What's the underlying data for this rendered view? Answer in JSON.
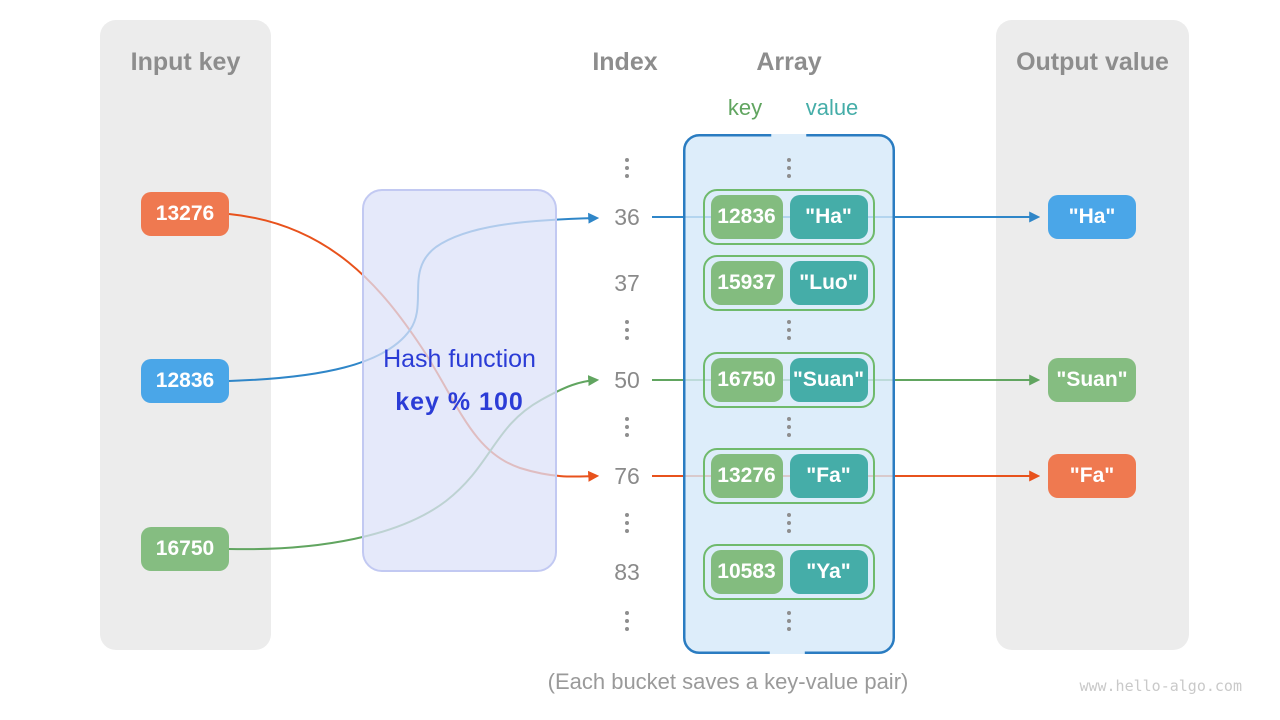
{
  "panels": {
    "input_key": {
      "title": "Input key"
    },
    "output_value": {
      "title": "Output value"
    }
  },
  "hash_function": {
    "label": "Hash function",
    "formula": "key % 100"
  },
  "columns": {
    "index_label": "Index",
    "array_label": "Array",
    "key_label": "key",
    "value_label": "value"
  },
  "input_keys": [
    {
      "value": "13276",
      "color": "#ef7950",
      "maps_to_index": "76"
    },
    {
      "value": "12836",
      "color": "#4aa6e8",
      "maps_to_index": "36"
    },
    {
      "value": "16750",
      "color": "#85bd81",
      "maps_to_index": "50"
    }
  ],
  "buckets": [
    {
      "index": "36",
      "key": "12836",
      "value": "\"Ha\""
    },
    {
      "index": "37",
      "key": "15937",
      "value": "\"Luo\""
    },
    {
      "index": "50",
      "key": "16750",
      "value": "\"Suan\""
    },
    {
      "index": "76",
      "key": "13276",
      "value": "\"Fa\""
    },
    {
      "index": "83",
      "key": "10583",
      "value": "\"Ya\""
    }
  ],
  "outputs": [
    {
      "value": "\"Ha\"",
      "color": "#4aa6e8",
      "from_index": "36"
    },
    {
      "value": "\"Suan\"",
      "color": "#85bd81",
      "from_index": "50"
    },
    {
      "value": "\"Fa\"",
      "color": "#ef7950",
      "from_index": "76"
    }
  ],
  "caption": "(Each bucket saves a key-value pair)",
  "watermark": "www.hello-algo.com",
  "colors": {
    "blue": "#2f86c8",
    "green": "#61a560",
    "orange": "#e8521c",
    "key_box": "#83bc7f",
    "value_box": "#45ada8",
    "pair_border": "#6fba6c",
    "container_border": "#2a7cc1",
    "container_fill": "rgba(213,233,249,0.8)",
    "hash_fill": "rgba(220,225,248,0.75)",
    "hash_text": "#2b3cd6",
    "dots": "#8e8e8e"
  }
}
